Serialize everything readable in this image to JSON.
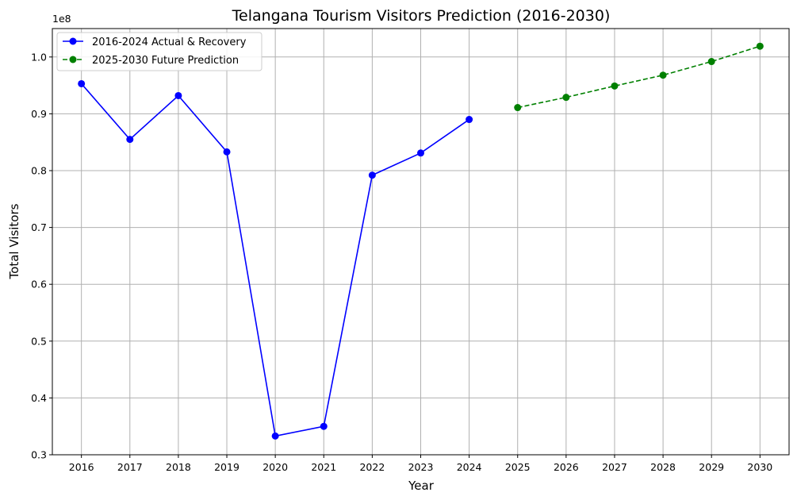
{
  "chart_data": {
    "type": "line",
    "title": "Telangana Tourism Visitors Prediction (2016-2030)",
    "xlabel": "Year",
    "ylabel": "Total Visitors",
    "y_offset_label": "1e8",
    "grid": true,
    "legend_placement": "top-left",
    "x_ticks": [
      "2016",
      "2017",
      "2018",
      "2019",
      "2020",
      "2021",
      "2022",
      "2023",
      "2024",
      "2025",
      "2026",
      "2027",
      "2028",
      "2029",
      "2030"
    ],
    "y_ticks": [
      "0.3",
      "0.4",
      "0.5",
      "0.6",
      "0.7",
      "0.8",
      "0.9",
      "1.0"
    ],
    "ylim": [
      0.3,
      1.05
    ],
    "xlim": [
      2015.4,
      2030.6
    ],
    "series": [
      {
        "name": "2016-2024 Actual & Recovery",
        "color": "#0000ff",
        "line_style": "solid",
        "marker": "circle",
        "x": [
          2016,
          2017,
          2018,
          2019,
          2020,
          2021,
          2022,
          2023,
          2024
        ],
        "values": [
          0.953,
          0.855,
          0.932,
          0.833,
          0.333,
          0.35,
          0.792,
          0.831,
          0.89
        ]
      },
      {
        "name": "2025-2030 Future Prediction",
        "color": "#008000",
        "line_style": "dashed",
        "marker": "circle",
        "x": [
          2025,
          2026,
          2027,
          2028,
          2029,
          2030
        ],
        "values": [
          0.911,
          0.929,
          0.949,
          0.968,
          0.992,
          1.019
        ]
      }
    ]
  }
}
